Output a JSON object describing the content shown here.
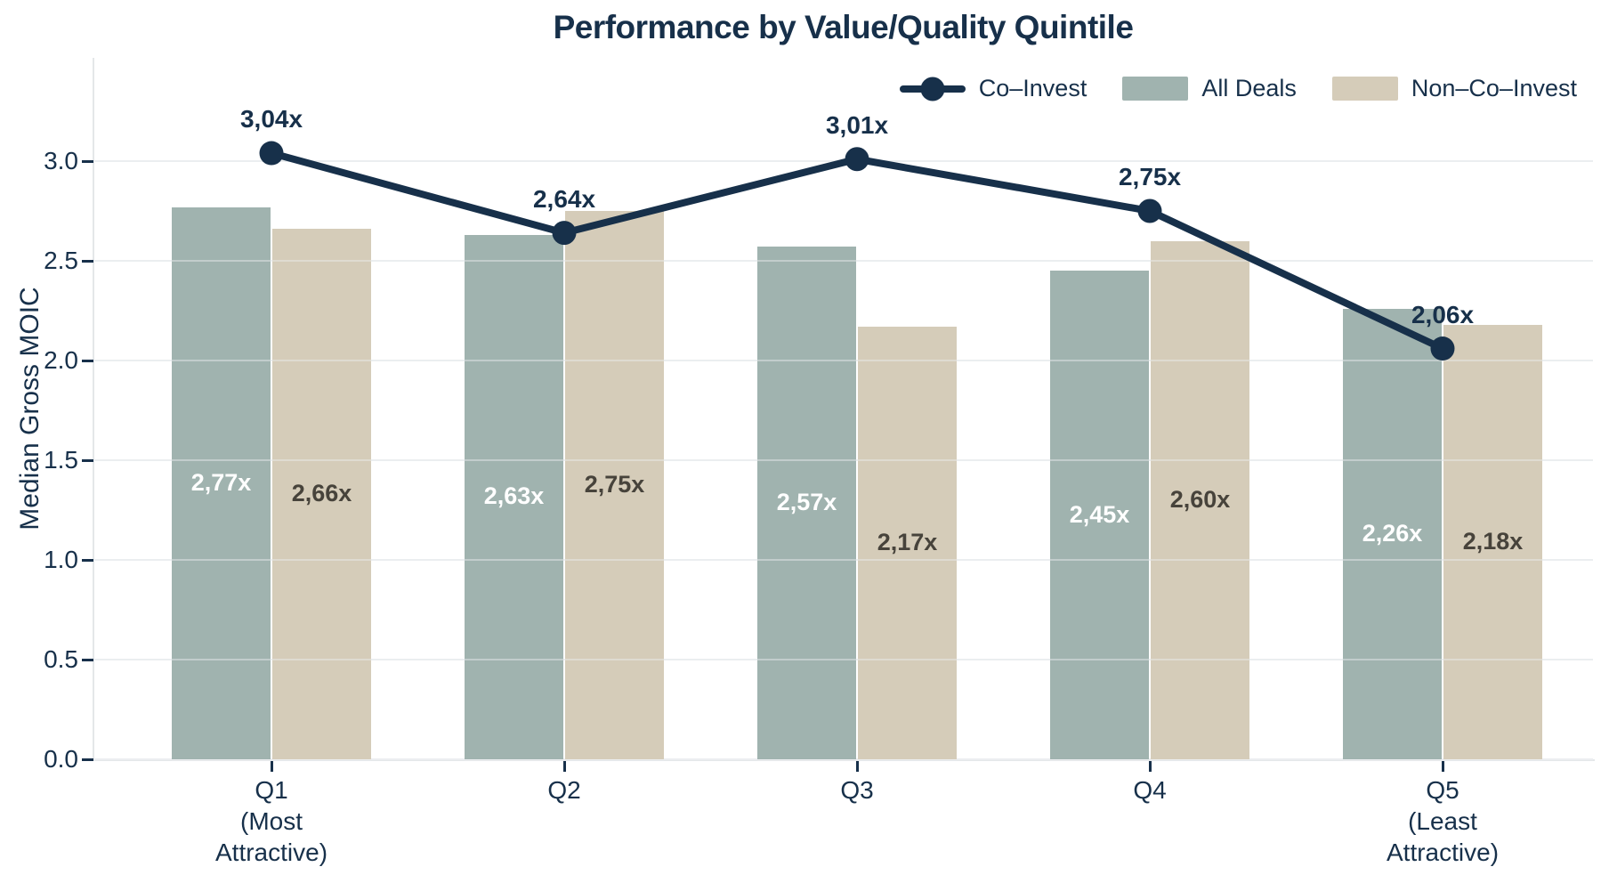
{
  "chart_data": {
    "type": "grouped-bar+line",
    "title": "Performance by Value/Quality Quintile",
    "ylabel": "Median Gross MOIC",
    "xlabel": "",
    "categories": [
      [
        "Q1",
        "(Most",
        "Attractive)"
      ],
      [
        "Q2"
      ],
      [
        "Q3"
      ],
      [
        "Q4"
      ],
      [
        "Q5",
        "(Least",
        "Attractive)"
      ]
    ],
    "ytick_labels": [
      "0.0",
      "0.5",
      "1.0",
      "1.5",
      "2.0",
      "2.5",
      "3.0"
    ],
    "yticks": [
      0,
      0.5,
      1,
      1.5,
      2,
      2.5,
      3
    ],
    "ylim": [
      0,
      3.52
    ],
    "grid": true,
    "legend_position": "top-right",
    "series": [
      {
        "name": "All Deals",
        "type": "bar",
        "color": "#A0B3AF",
        "label_color": "#FFFFFF",
        "values": [
          2.77,
          2.63,
          2.57,
          2.45,
          2.26
        ],
        "labels": [
          "2,77x",
          "2,63x",
          "2,57x",
          "2,45x",
          "2,26x"
        ]
      },
      {
        "name": "Non–Co–Invest",
        "type": "bar",
        "color": "#D5CCB9",
        "label_color": "#47433B",
        "values": [
          2.66,
          2.75,
          2.17,
          2.6,
          2.18
        ],
        "labels": [
          "2,66x",
          "2,75x",
          "2,17x",
          "2,60x",
          "2,18x"
        ]
      },
      {
        "name": "Co–Invest",
        "type": "line",
        "color": "#17304A",
        "values": [
          3.04,
          2.64,
          3.01,
          2.75,
          2.06
        ],
        "labels": [
          "3,04x",
          "2,64x",
          "3,01x",
          "2,75x",
          "2,06x"
        ]
      }
    ],
    "colors": {
      "navy": "#17304A",
      "sage": "#A0B3AF",
      "tan": "#D5CCB9",
      "grid": "#ECEEF0",
      "axis": "#E4E7E9",
      "background": "#FFFFFF"
    }
  }
}
